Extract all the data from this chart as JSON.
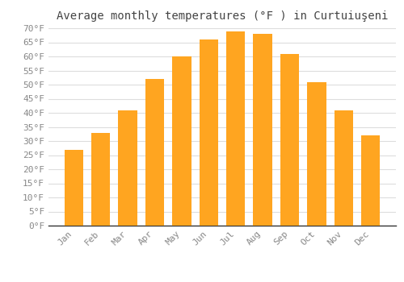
{
  "months": [
    "Jan",
    "Feb",
    "Mar",
    "Apr",
    "May",
    "Jun",
    "Jul",
    "Aug",
    "Sep",
    "Oct",
    "Nov",
    "Dec"
  ],
  "values": [
    27,
    33,
    41,
    52,
    60,
    66,
    69,
    68,
    61,
    51,
    41,
    32
  ],
  "bar_color_top": "#FFA500",
  "bar_color_bottom": "#FFB733",
  "title": "Average monthly temperatures (°F ) in Curtuiuşeni",
  "ylim_min": 0,
  "ylim_max": 70,
  "ytick_step": 5,
  "background_color": "#ffffff",
  "plot_bg_color": "#ffffff",
  "grid_color": "#dddddd",
  "title_fontsize": 10,
  "tick_fontsize": 8,
  "bar_color": "#FFA520",
  "tick_color": "#888888"
}
